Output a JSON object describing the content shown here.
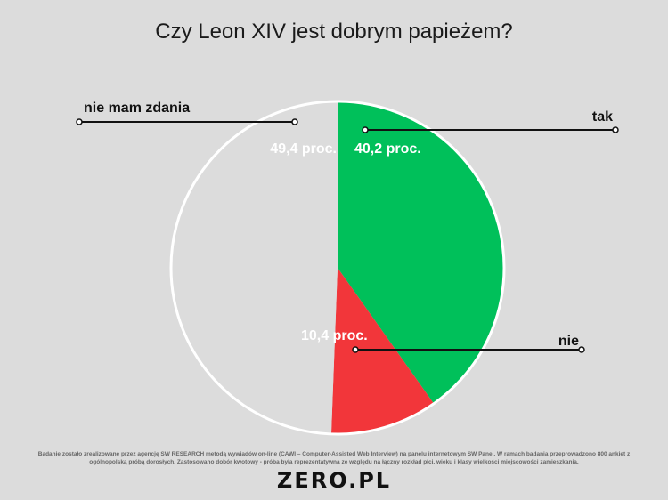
{
  "title": "Czy Leon XIV jest dobrym papieżem?",
  "colors": {
    "background": "#dcdcdc",
    "tak": "#00c05a",
    "nie": "#f2363a",
    "nie_mam_zdania": "#dcdcdc",
    "outline": "#ffffff"
  },
  "chart_data": {
    "type": "pie",
    "title": "Czy Leon XIV jest dobrym papieżem?",
    "series": [
      {
        "name": "tak",
        "value": 40.2,
        "label": "40,2 proc.",
        "color": "#00c05a"
      },
      {
        "name": "nie",
        "value": 10.4,
        "label": "10,4 proc.",
        "color": "#f2363a"
      },
      {
        "name": "nie mam zdania",
        "value": 49.4,
        "label": "49,4  proc.",
        "color": "#dcdcdc"
      }
    ],
    "start": "12 o'clock",
    "direction": "clockwise"
  },
  "footnote": {
    "line1": "Badanie zostało zrealizowane  przez agencję SW RESEARCH metodą wywiadów on-line (CAWI – Computer-Assisted Web Interview) na panelu internetowym SW Panel. W ramach badania przeprowadzono 800 ankiet z",
    "line2": "ogólnopolską próbą dorosłych. Zastosowano dobór kwotowy - próba była reprezentatywna ze względu na łączny rozkład płci, wieku i klasy wielkości miejscowości zamieszkania."
  },
  "logo": "ZERO.PL"
}
